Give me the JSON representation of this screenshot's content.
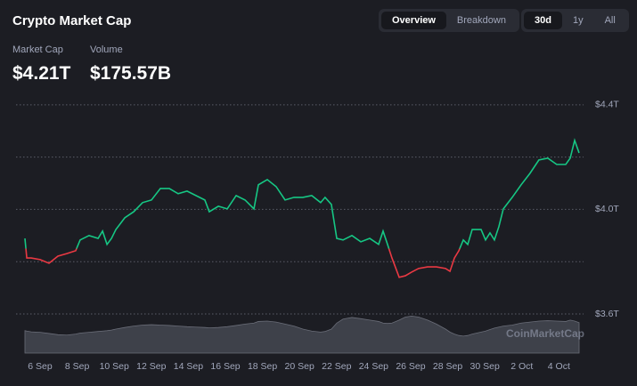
{
  "header": {
    "title": "Crypto Market Cap",
    "stats": [
      {
        "label": "Market Cap",
        "value": "$4.21T"
      },
      {
        "label": "Volume",
        "value": "$175.57B"
      }
    ],
    "view_tabs": [
      "Overview",
      "Breakdown"
    ],
    "active_view": 0,
    "range_tabs": [
      "30d",
      "1y",
      "All"
    ],
    "active_range": 0
  },
  "chart_data": {
    "type": "line",
    "x": [
      -0.82,
      -0.72,
      -0.48,
      0,
      0.48,
      0.96,
      1.44,
      1.92,
      2.16,
      2.64,
      3.13,
      3.37,
      3.61,
      3.85,
      4.09,
      4.57,
      5.05,
      5.53,
      6.01,
      6.49,
      6.97,
      7.45,
      7.93,
      8.41,
      8.89,
      9.13,
      9.62,
      10.1,
      10.58,
      11.06,
      11.54,
      11.78,
      12.26,
      12.74,
      13.22,
      13.7,
      14.18,
      14.66,
      15.14,
      15.38,
      15.72,
      16.01,
      16.35,
      16.83,
      17.31,
      17.79,
      18.27,
      18.51,
      18.75,
      18.99,
      19.38,
      19.71,
      20.05,
      20.43,
      20.91,
      21.39,
      21.88,
      22.12,
      22.36,
      22.6,
      22.84,
      23.08,
      23.32,
      23.8,
      24.04,
      24.28,
      24.52,
      24.76,
      25.0,
      25.48,
      25.96,
      26.44,
      26.92,
      27.4,
      27.88,
      28.37,
      28.61,
      28.85,
      29.09
    ],
    "values": [
      3.889,
      3.814,
      3.814,
      3.808,
      3.794,
      3.821,
      3.831,
      3.842,
      3.883,
      3.9,
      3.889,
      3.917,
      3.866,
      3.889,
      3.923,
      3.968,
      3.991,
      4.026,
      4.036,
      4.08,
      4.08,
      4.06,
      4.07,
      4.053,
      4.036,
      3.991,
      4.012,
      4.002,
      4.053,
      4.036,
      4.002,
      4.094,
      4.114,
      4.087,
      4.036,
      4.046,
      4.046,
      4.053,
      4.026,
      4.046,
      4.019,
      3.889,
      3.883,
      3.9,
      3.876,
      3.889,
      3.866,
      3.917,
      3.866,
      3.814,
      3.74,
      3.746,
      3.76,
      3.774,
      3.78,
      3.78,
      3.774,
      3.763,
      3.814,
      3.842,
      3.883,
      3.866,
      3.923,
      3.923,
      3.883,
      3.91,
      3.883,
      3.934,
      4.002,
      4.046,
      4.094,
      4.138,
      4.189,
      4.196,
      4.172,
      4.172,
      4.196,
      4.264,
      4.216
    ],
    "baseline": 3.85,
    "up_color": "#16c784",
    "down_color": "#ea3943",
    "xlim": [
      -1.3,
      29.33
    ],
    "ylim": [
      3.44,
      4.42
    ],
    "xticks": [
      {
        "value": 0,
        "label": "6 Sep"
      },
      {
        "value": 2,
        "label": "8 Sep"
      },
      {
        "value": 4,
        "label": "10 Sep"
      },
      {
        "value": 6,
        "label": "12 Sep"
      },
      {
        "value": 8,
        "label": "14 Sep"
      },
      {
        "value": 10,
        "label": "16 Sep"
      },
      {
        "value": 12,
        "label": "18 Sep"
      },
      {
        "value": 14,
        "label": "20 Sep"
      },
      {
        "value": 16,
        "label": "22 Sep"
      },
      {
        "value": 18,
        "label": "24 Sep"
      },
      {
        "value": 20,
        "label": "26 Sep"
      },
      {
        "value": 22,
        "label": "28 Sep"
      },
      {
        "value": 24,
        "label": "30 Sep"
      },
      {
        "value": 26,
        "label": "2 Oct"
      },
      {
        "value": 28,
        "label": "4 Oct"
      }
    ],
    "yticks": [
      {
        "value": 4.4,
        "label": "$4.4T"
      },
      {
        "value": 4.0,
        "label": "$4.0T"
      },
      {
        "value": 3.6,
        "label": "$3.6T"
      }
    ],
    "ygrid": [
      3.6,
      3.8,
      4.0,
      4.2,
      4.4
    ],
    "volume": {
      "color": "#4a4d58",
      "vlim": [
        0,
        400
      ],
      "values": [
        112,
        110,
        106,
        104,
        98,
        92,
        90,
        95,
        100,
        104,
        108,
        110,
        112,
        115,
        120,
        128,
        135,
        140,
        142,
        140,
        138,
        135,
        132,
        130,
        128,
        126,
        128,
        132,
        138,
        145,
        150,
        158,
        160,
        155,
        145,
        135,
        120,
        110,
        105,
        108,
        120,
        150,
        170,
        178,
        172,
        165,
        158,
        150,
        148,
        150,
        165,
        180,
        185,
        180,
        165,
        145,
        120,
        105,
        95,
        88,
        85,
        88,
        95,
        105,
        110,
        118,
        125,
        130,
        135,
        140,
        150,
        155,
        160,
        162,
        160,
        158,
        165,
        160,
        152
      ]
    },
    "watermark": "CoinMarketCap"
  }
}
